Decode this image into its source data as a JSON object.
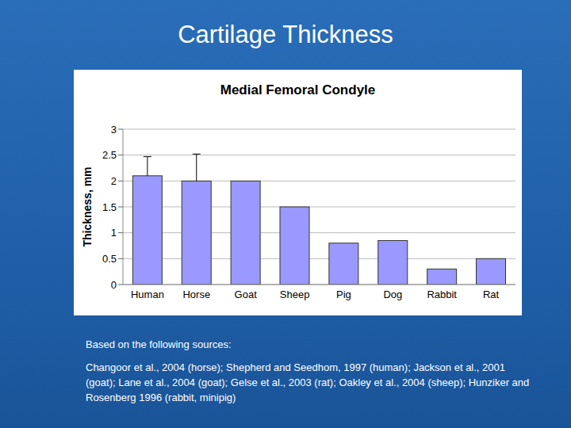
{
  "chart_data": {
    "type": "bar",
    "title": "Medial Femoral Condyle",
    "categories": [
      "Human",
      "Horse",
      "Goat",
      "Sheep",
      "Pig",
      "Dog",
      "Rabbit",
      "Rat"
    ],
    "values": [
      2.1,
      2.0,
      2.0,
      1.5,
      0.8,
      0.85,
      0.3,
      0.5
    ],
    "errors": [
      0.37,
      0.52,
      null,
      null,
      null,
      null,
      null,
      null
    ],
    "color": "#9999ff",
    "ylabel": "Thickness, mm",
    "ylim": [
      0,
      3
    ],
    "yticks": [
      0,
      0.5,
      1,
      1.5,
      2,
      2.5,
      3
    ],
    "grid": true
  },
  "slide": {
    "title": "Cartilage Thickness",
    "sources_heading": "Based on the following sources:",
    "sources": "Changoor et al., 2004 (horse); Shepherd and Seedhom, 1997 (human); Jackson et al., 2001 (goat); Lane et al., 2004 (goat); Gelse et al., 2003 (rat); Oakley et al., 2004 (sheep); Hunziker and Rosenberg 1996 (rabbit, minipig)"
  }
}
